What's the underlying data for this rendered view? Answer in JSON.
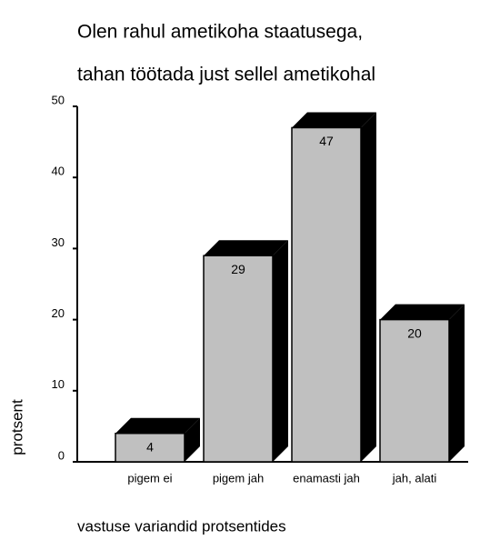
{
  "chart_data": {
    "type": "bar",
    "title": [
      "Olen rahul ametikoha staatusega,",
      "tahan töötada just sellel ametikohal"
    ],
    "x_label": "vastuse variandid protsentides",
    "y_label": "protsent",
    "categories": [
      "pigem ei",
      "pigem jah",
      "enamasti jah",
      "jah, alati"
    ],
    "values": [
      4,
      29,
      47,
      20
    ],
    "color": "#c0c0c0",
    "depth_color": "#000000",
    "ylim": [
      0,
      50
    ],
    "yticks": [
      0,
      10,
      20,
      30,
      40,
      50
    ],
    "grid": false
  }
}
